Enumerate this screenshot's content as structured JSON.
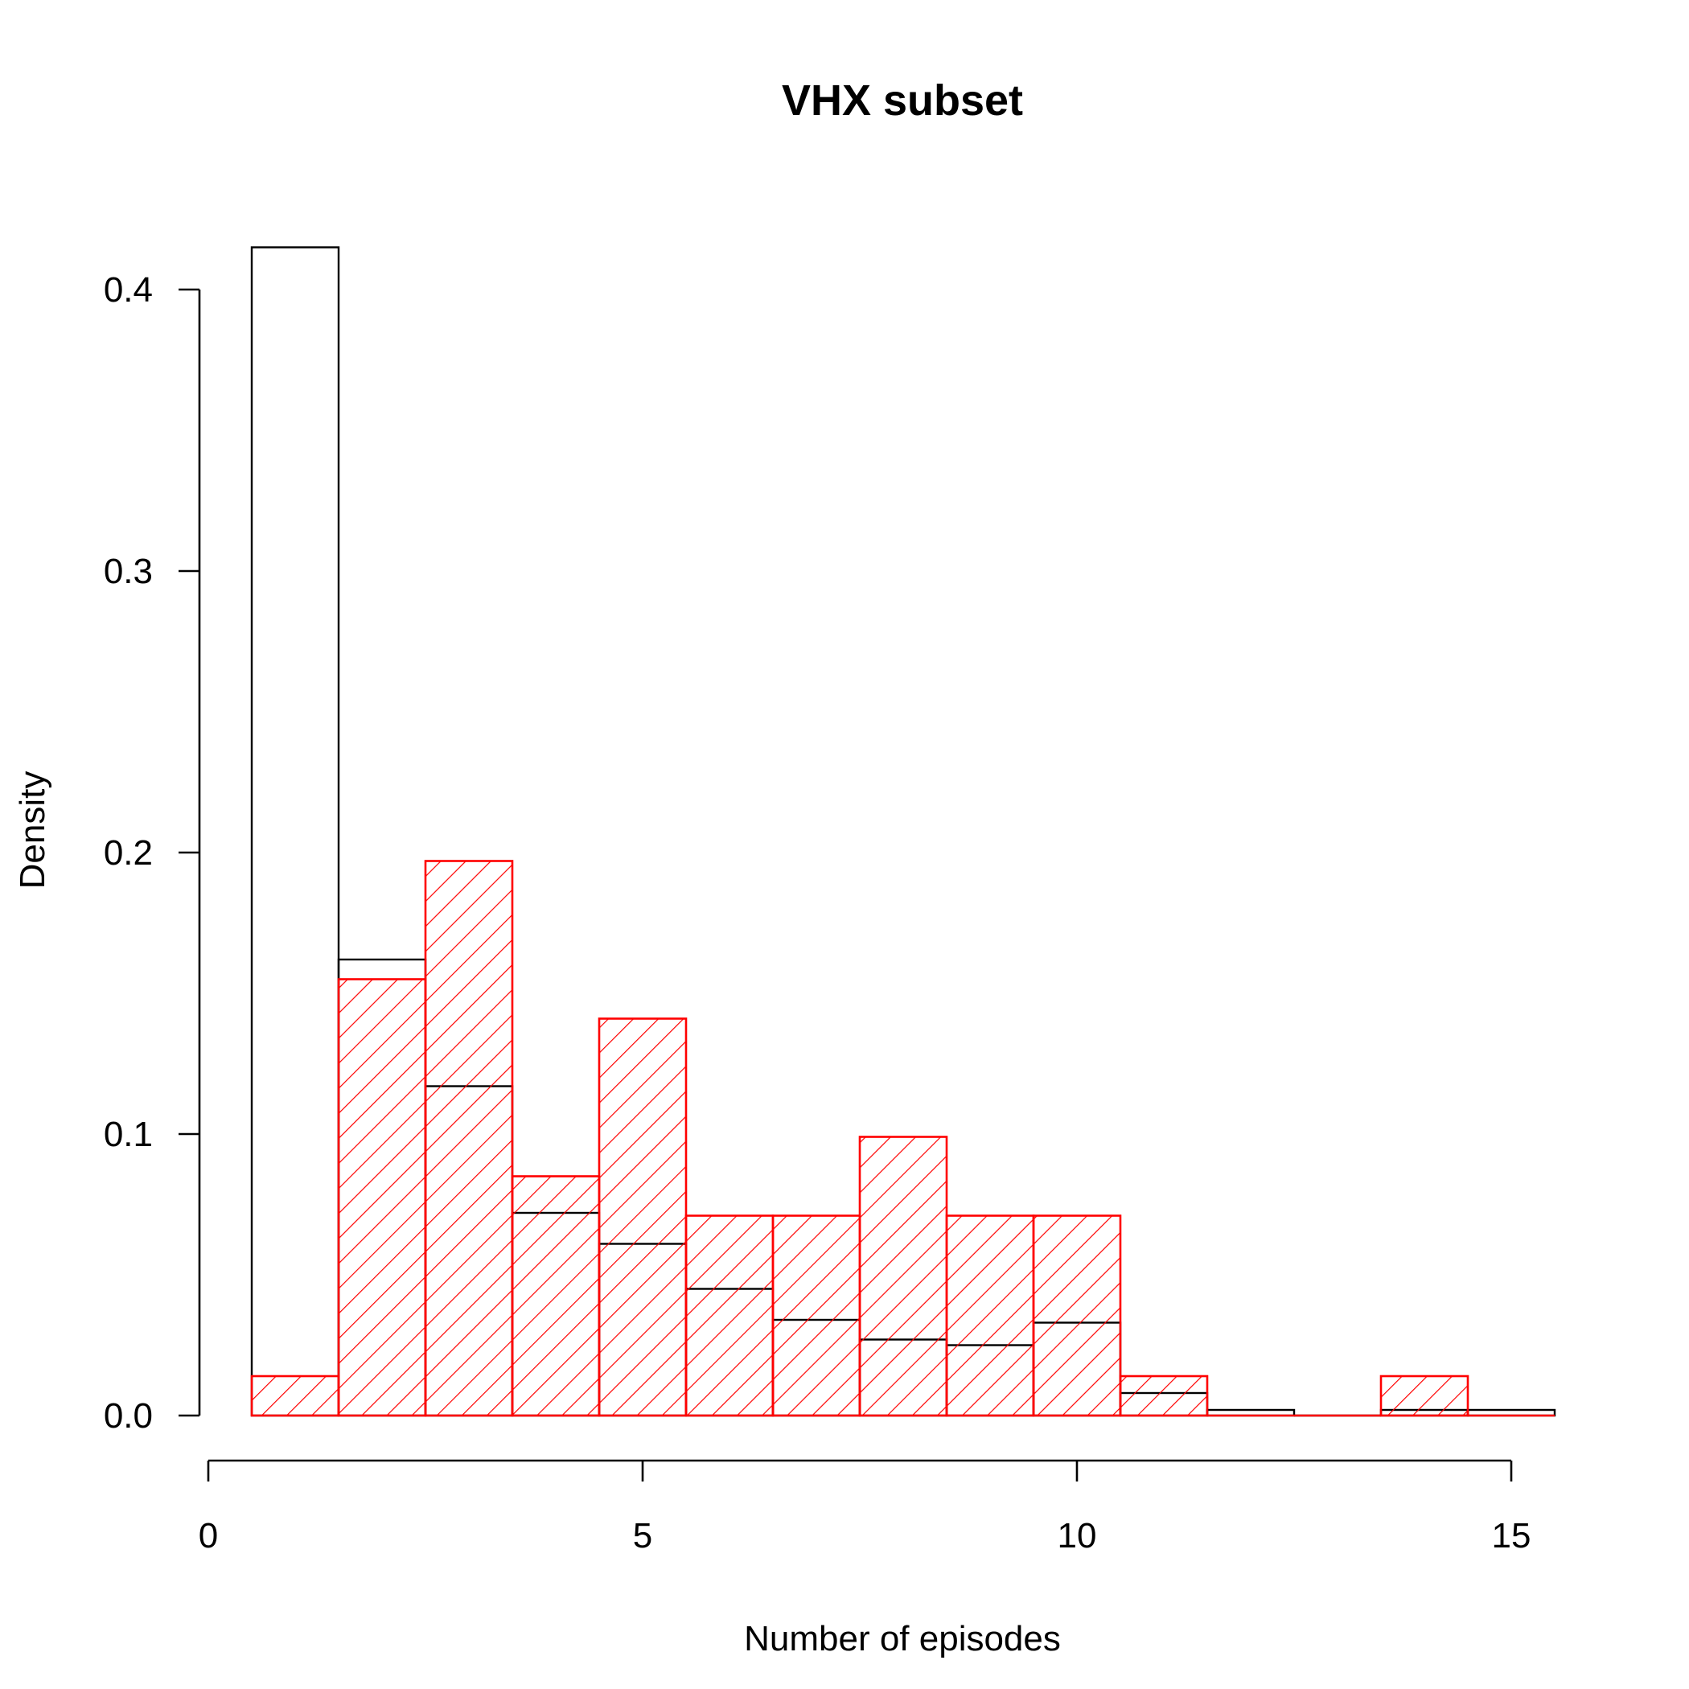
{
  "chart_data": {
    "type": "bar",
    "title": "VHX subset",
    "xlabel": "Number of episodes",
    "ylabel": "Density",
    "xlim": [
      0,
      15.5
    ],
    "ylim": [
      0,
      0.42
    ],
    "xticks": [
      0,
      5,
      10,
      15
    ],
    "xtick_labels": [
      "0",
      "5",
      "10",
      "15"
    ],
    "yticks": [
      0.0,
      0.1,
      0.2,
      0.3,
      0.4
    ],
    "ytick_labels": [
      "0.0",
      "0.1",
      "0.2",
      "0.3",
      "0.4"
    ],
    "grid": false,
    "legend": "none",
    "bin_edges": [
      0.5,
      1.5,
      2.5,
      3.5,
      4.5,
      5.5,
      6.5,
      7.5,
      8.5,
      9.5,
      10.5,
      11.5,
      12.5,
      13.5,
      14.5,
      15.5
    ],
    "series": [
      {
        "style": "outline",
        "color": "#000000",
        "values": [
          0.415,
          0.162,
          0.117,
          0.072,
          0.061,
          0.045,
          0.034,
          0.027,
          0.025,
          0.033,
          0.008,
          0.002,
          0.0,
          0.002,
          0.002
        ]
      },
      {
        "style": "hatched",
        "color": "#ff0000",
        "values": [
          0.014,
          0.155,
          0.197,
          0.085,
          0.141,
          0.071,
          0.071,
          0.099,
          0.071,
          0.071,
          0.014,
          0.0,
          0.0,
          0.014,
          0.0
        ]
      }
    ]
  }
}
